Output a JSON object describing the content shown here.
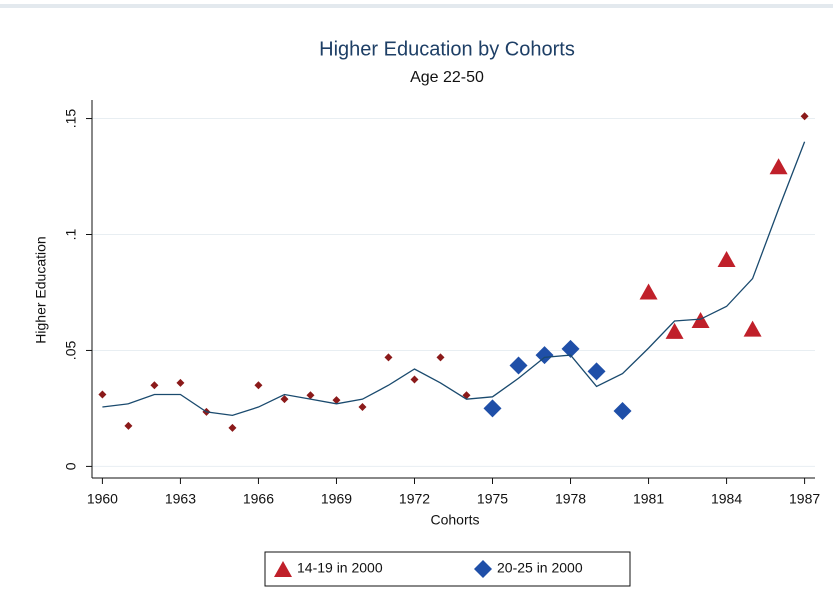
{
  "chart_data": {
    "type": "scatter",
    "title": "Higher Education by Cohorts",
    "subtitle": "Age 22-50",
    "x_label": "Cohorts",
    "y_label": "Higher Education",
    "xlim": [
      1959.6,
      1987.4
    ],
    "ylim": [
      -0.005,
      0.158
    ],
    "xticks": [
      1960,
      1963,
      1966,
      1969,
      1972,
      1975,
      1978,
      1981,
      1984,
      1987
    ],
    "yticks": [
      0,
      {
        "value": 0.05,
        "label": ".05"
      },
      {
        "value": 0.1,
        "label": ".1"
      },
      {
        "value": 0.15,
        "label": ".15"
      }
    ],
    "grid": true,
    "legend": "bottom",
    "series": [
      {
        "marker": "small-diamond",
        "color": "#8b1a1a",
        "x": [
          1960,
          1961,
          1962,
          1963,
          1964,
          1965,
          1966,
          1967,
          1968,
          1969,
          1970,
          1971,
          1972,
          1973,
          1974,
          1987
        ],
        "values": [
          0.031,
          0.0175,
          0.035,
          0.036,
          0.0235,
          0.0166,
          0.035,
          0.029,
          0.0307,
          0.0286,
          0.0256,
          0.047,
          0.0375,
          0.047,
          0.0307,
          0.151
        ]
      },
      {
        "name": "14-19 in 2000",
        "marker": "triangle",
        "color": "#c0202a",
        "x": [
          1981,
          1982,
          1983,
          1984,
          1985,
          1986
        ],
        "values": [
          0.075,
          0.058,
          0.0627,
          0.089,
          0.059,
          0.129
        ]
      },
      {
        "name": "20-25 in 2000",
        "marker": "diamond",
        "color": "#1f4fa8",
        "x": [
          1975,
          1976,
          1977,
          1978,
          1979,
          1980
        ],
        "values": [
          0.025,
          0.0435,
          0.048,
          0.0507,
          0.041,
          0.0239
        ]
      },
      {
        "marker": "line",
        "color": "#1a4a6e",
        "x": [
          1960,
          1961,
          1962,
          1963,
          1964,
          1965,
          1966,
          1967,
          1968,
          1969,
          1970,
          1971,
          1972,
          1973,
          1974,
          1975,
          1976,
          1977,
          1978,
          1979,
          1980,
          1981,
          1982,
          1983,
          1984,
          1985,
          1986,
          1987
        ],
        "values": [
          0.0256,
          0.027,
          0.031,
          0.031,
          0.0235,
          0.022,
          0.0256,
          0.031,
          0.029,
          0.027,
          0.029,
          0.035,
          0.042,
          0.036,
          0.029,
          0.03,
          0.038,
          0.047,
          0.048,
          0.0345,
          0.04,
          0.051,
          0.0627,
          0.0635,
          0.069,
          0.081,
          0.111,
          0.14
        ]
      }
    ]
  }
}
